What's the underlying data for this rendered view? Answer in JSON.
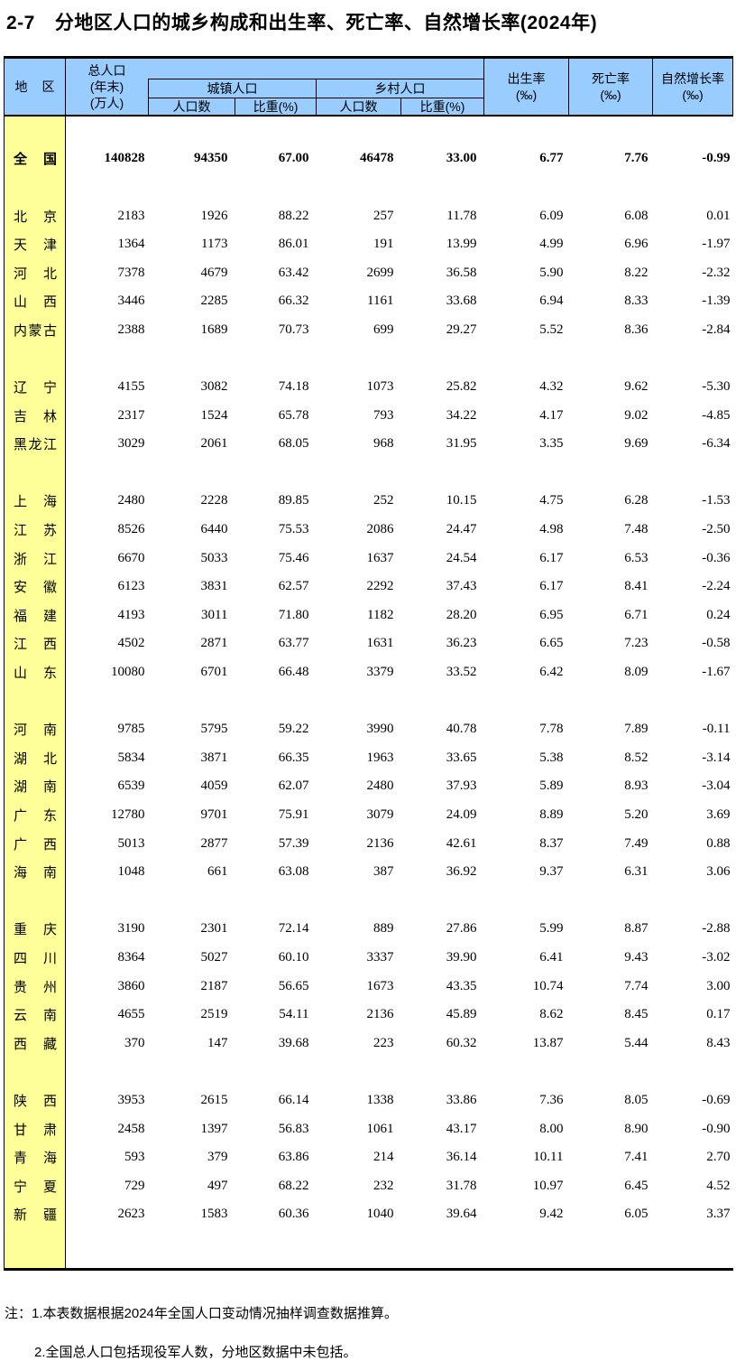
{
  "title": {
    "number": "2-7",
    "text": "分地区人口的城乡构成和出生率、死亡率、自然增长率(2024年)"
  },
  "colors": {
    "header_bg": "#99CCFF",
    "region_col_bg": "#FFFF99",
    "border": "#000000"
  },
  "header": {
    "region": "地区",
    "total_lines": [
      "总人口",
      "(年末)",
      "(万人)"
    ],
    "urban_group": "城镇人口",
    "rural_group": "乡村人口",
    "pop_count": "人口数",
    "share": "比重(%)",
    "birth": [
      "出生率",
      "(‰)"
    ],
    "death": [
      "死亡率",
      "(‰)"
    ],
    "growth": [
      "自然增长率",
      "(‰)"
    ]
  },
  "table": {
    "rows": [
      {
        "region": "全国",
        "total": "140828",
        "urban": "94350",
        "urban_pct": "67.00",
        "rural": "46478",
        "rural_pct": "33.00",
        "birth": "6.77",
        "death": "7.76",
        "growth": "-0.99"
      },
      {
        "region": "北京",
        "total": "2183",
        "urban": "1926",
        "urban_pct": "88.22",
        "rural": "257",
        "rural_pct": "11.78",
        "birth": "6.09",
        "death": "6.08",
        "growth": "0.01"
      },
      {
        "region": "天津",
        "total": "1364",
        "urban": "1173",
        "urban_pct": "86.01",
        "rural": "191",
        "rural_pct": "13.99",
        "birth": "4.99",
        "death": "6.96",
        "growth": "-1.97"
      },
      {
        "region": "河北",
        "total": "7378",
        "urban": "4679",
        "urban_pct": "63.42",
        "rural": "2699",
        "rural_pct": "36.58",
        "birth": "5.90",
        "death": "8.22",
        "growth": "-2.32"
      },
      {
        "region": "山西",
        "total": "3446",
        "urban": "2285",
        "urban_pct": "66.32",
        "rural": "1161",
        "rural_pct": "33.68",
        "birth": "6.94",
        "death": "8.33",
        "growth": "-1.39"
      },
      {
        "region": "内蒙古",
        "total": "2388",
        "urban": "1689",
        "urban_pct": "70.73",
        "rural": "699",
        "rural_pct": "29.27",
        "birth": "5.52",
        "death": "8.36",
        "growth": "-2.84"
      },
      {
        "region": "辽宁",
        "total": "4155",
        "urban": "3082",
        "urban_pct": "74.18",
        "rural": "1073",
        "rural_pct": "25.82",
        "birth": "4.32",
        "death": "9.62",
        "growth": "-5.30"
      },
      {
        "region": "吉林",
        "total": "2317",
        "urban": "1524",
        "urban_pct": "65.78",
        "rural": "793",
        "rural_pct": "34.22",
        "birth": "4.17",
        "death": "9.02",
        "growth": "-4.85"
      },
      {
        "region": "黑龙江",
        "total": "3029",
        "urban": "2061",
        "urban_pct": "68.05",
        "rural": "968",
        "rural_pct": "31.95",
        "birth": "3.35",
        "death": "9.69",
        "growth": "-6.34"
      },
      {
        "region": "上海",
        "total": "2480",
        "urban": "2228",
        "urban_pct": "89.85",
        "rural": "252",
        "rural_pct": "10.15",
        "birth": "4.75",
        "death": "6.28",
        "growth": "-1.53"
      },
      {
        "region": "江苏",
        "total": "8526",
        "urban": "6440",
        "urban_pct": "75.53",
        "rural": "2086",
        "rural_pct": "24.47",
        "birth": "4.98",
        "death": "7.48",
        "growth": "-2.50"
      },
      {
        "region": "浙江",
        "total": "6670",
        "urban": "5033",
        "urban_pct": "75.46",
        "rural": "1637",
        "rural_pct": "24.54",
        "birth": "6.17",
        "death": "6.53",
        "growth": "-0.36"
      },
      {
        "region": "安徽",
        "total": "6123",
        "urban": "3831",
        "urban_pct": "62.57",
        "rural": "2292",
        "rural_pct": "37.43",
        "birth": "6.17",
        "death": "8.41",
        "growth": "-2.24"
      },
      {
        "region": "福建",
        "total": "4193",
        "urban": "3011",
        "urban_pct": "71.80",
        "rural": "1182",
        "rural_pct": "28.20",
        "birth": "6.95",
        "death": "6.71",
        "growth": "0.24"
      },
      {
        "region": "江西",
        "total": "4502",
        "urban": "2871",
        "urban_pct": "63.77",
        "rural": "1631",
        "rural_pct": "36.23",
        "birth": "6.65",
        "death": "7.23",
        "growth": "-0.58"
      },
      {
        "region": "山东",
        "total": "10080",
        "urban": "6701",
        "urban_pct": "66.48",
        "rural": "3379",
        "rural_pct": "33.52",
        "birth": "6.42",
        "death": "8.09",
        "growth": "-1.67"
      },
      {
        "region": "河南",
        "total": "9785",
        "urban": "5795",
        "urban_pct": "59.22",
        "rural": "3990",
        "rural_pct": "40.78",
        "birth": "7.78",
        "death": "7.89",
        "growth": "-0.11"
      },
      {
        "region": "湖北",
        "total": "5834",
        "urban": "3871",
        "urban_pct": "66.35",
        "rural": "1963",
        "rural_pct": "33.65",
        "birth": "5.38",
        "death": "8.52",
        "growth": "-3.14"
      },
      {
        "region": "湖南",
        "total": "6539",
        "urban": "4059",
        "urban_pct": "62.07",
        "rural": "2480",
        "rural_pct": "37.93",
        "birth": "5.89",
        "death": "8.93",
        "growth": "-3.04"
      },
      {
        "region": "广东",
        "total": "12780",
        "urban": "9701",
        "urban_pct": "75.91",
        "rural": "3079",
        "rural_pct": "24.09",
        "birth": "8.89",
        "death": "5.20",
        "growth": "3.69"
      },
      {
        "region": "广西",
        "total": "5013",
        "urban": "2877",
        "urban_pct": "57.39",
        "rural": "2136",
        "rural_pct": "42.61",
        "birth": "8.37",
        "death": "7.49",
        "growth": "0.88"
      },
      {
        "region": "海南",
        "total": "1048",
        "urban": "661",
        "urban_pct": "63.08",
        "rural": "387",
        "rural_pct": "36.92",
        "birth": "9.37",
        "death": "6.31",
        "growth": "3.06"
      },
      {
        "region": "重庆",
        "total": "3190",
        "urban": "2301",
        "urban_pct": "72.14",
        "rural": "889",
        "rural_pct": "27.86",
        "birth": "5.99",
        "death": "8.87",
        "growth": "-2.88"
      },
      {
        "region": "四川",
        "total": "8364",
        "urban": "5027",
        "urban_pct": "60.10",
        "rural": "3337",
        "rural_pct": "39.90",
        "birth": "6.41",
        "death": "9.43",
        "growth": "-3.02"
      },
      {
        "region": "贵州",
        "total": "3860",
        "urban": "2187",
        "urban_pct": "56.65",
        "rural": "1673",
        "rural_pct": "43.35",
        "birth": "10.74",
        "death": "7.74",
        "growth": "3.00"
      },
      {
        "region": "云南",
        "total": "4655",
        "urban": "2519",
        "urban_pct": "54.11",
        "rural": "2136",
        "rural_pct": "45.89",
        "birth": "8.62",
        "death": "8.45",
        "growth": "0.17"
      },
      {
        "region": "西藏",
        "total": "370",
        "urban": "147",
        "urban_pct": "39.68",
        "rural": "223",
        "rural_pct": "60.32",
        "birth": "13.87",
        "death": "5.44",
        "growth": "8.43"
      },
      {
        "region": "陕西",
        "total": "3953",
        "urban": "2615",
        "urban_pct": "66.14",
        "rural": "1338",
        "rural_pct": "33.86",
        "birth": "7.36",
        "death": "8.05",
        "growth": "-0.69"
      },
      {
        "region": "甘肃",
        "total": "2458",
        "urban": "1397",
        "urban_pct": "56.83",
        "rural": "1061",
        "rural_pct": "43.17",
        "birth": "8.00",
        "death": "8.90",
        "growth": "-0.90"
      },
      {
        "region": "青海",
        "total": "593",
        "urban": "379",
        "urban_pct": "63.86",
        "rural": "214",
        "rural_pct": "36.14",
        "birth": "10.11",
        "death": "7.41",
        "growth": "2.70"
      },
      {
        "region": "宁夏",
        "total": "729",
        "urban": "497",
        "urban_pct": "68.22",
        "rural": "232",
        "rural_pct": "31.78",
        "birth": "10.97",
        "death": "6.45",
        "growth": "4.52"
      },
      {
        "region": "新疆",
        "total": "2623",
        "urban": "1583",
        "urban_pct": "60.36",
        "rural": "1040",
        "rural_pct": "39.64",
        "birth": "9.42",
        "death": "6.05",
        "growth": "3.37"
      }
    ]
  },
  "notes": [
    "注：1.本表数据根据2024年全国人口变动情况抽样调查数据推算。",
    "2.全国总人口包括现役军人数，分地区数据中未包括。"
  ]
}
